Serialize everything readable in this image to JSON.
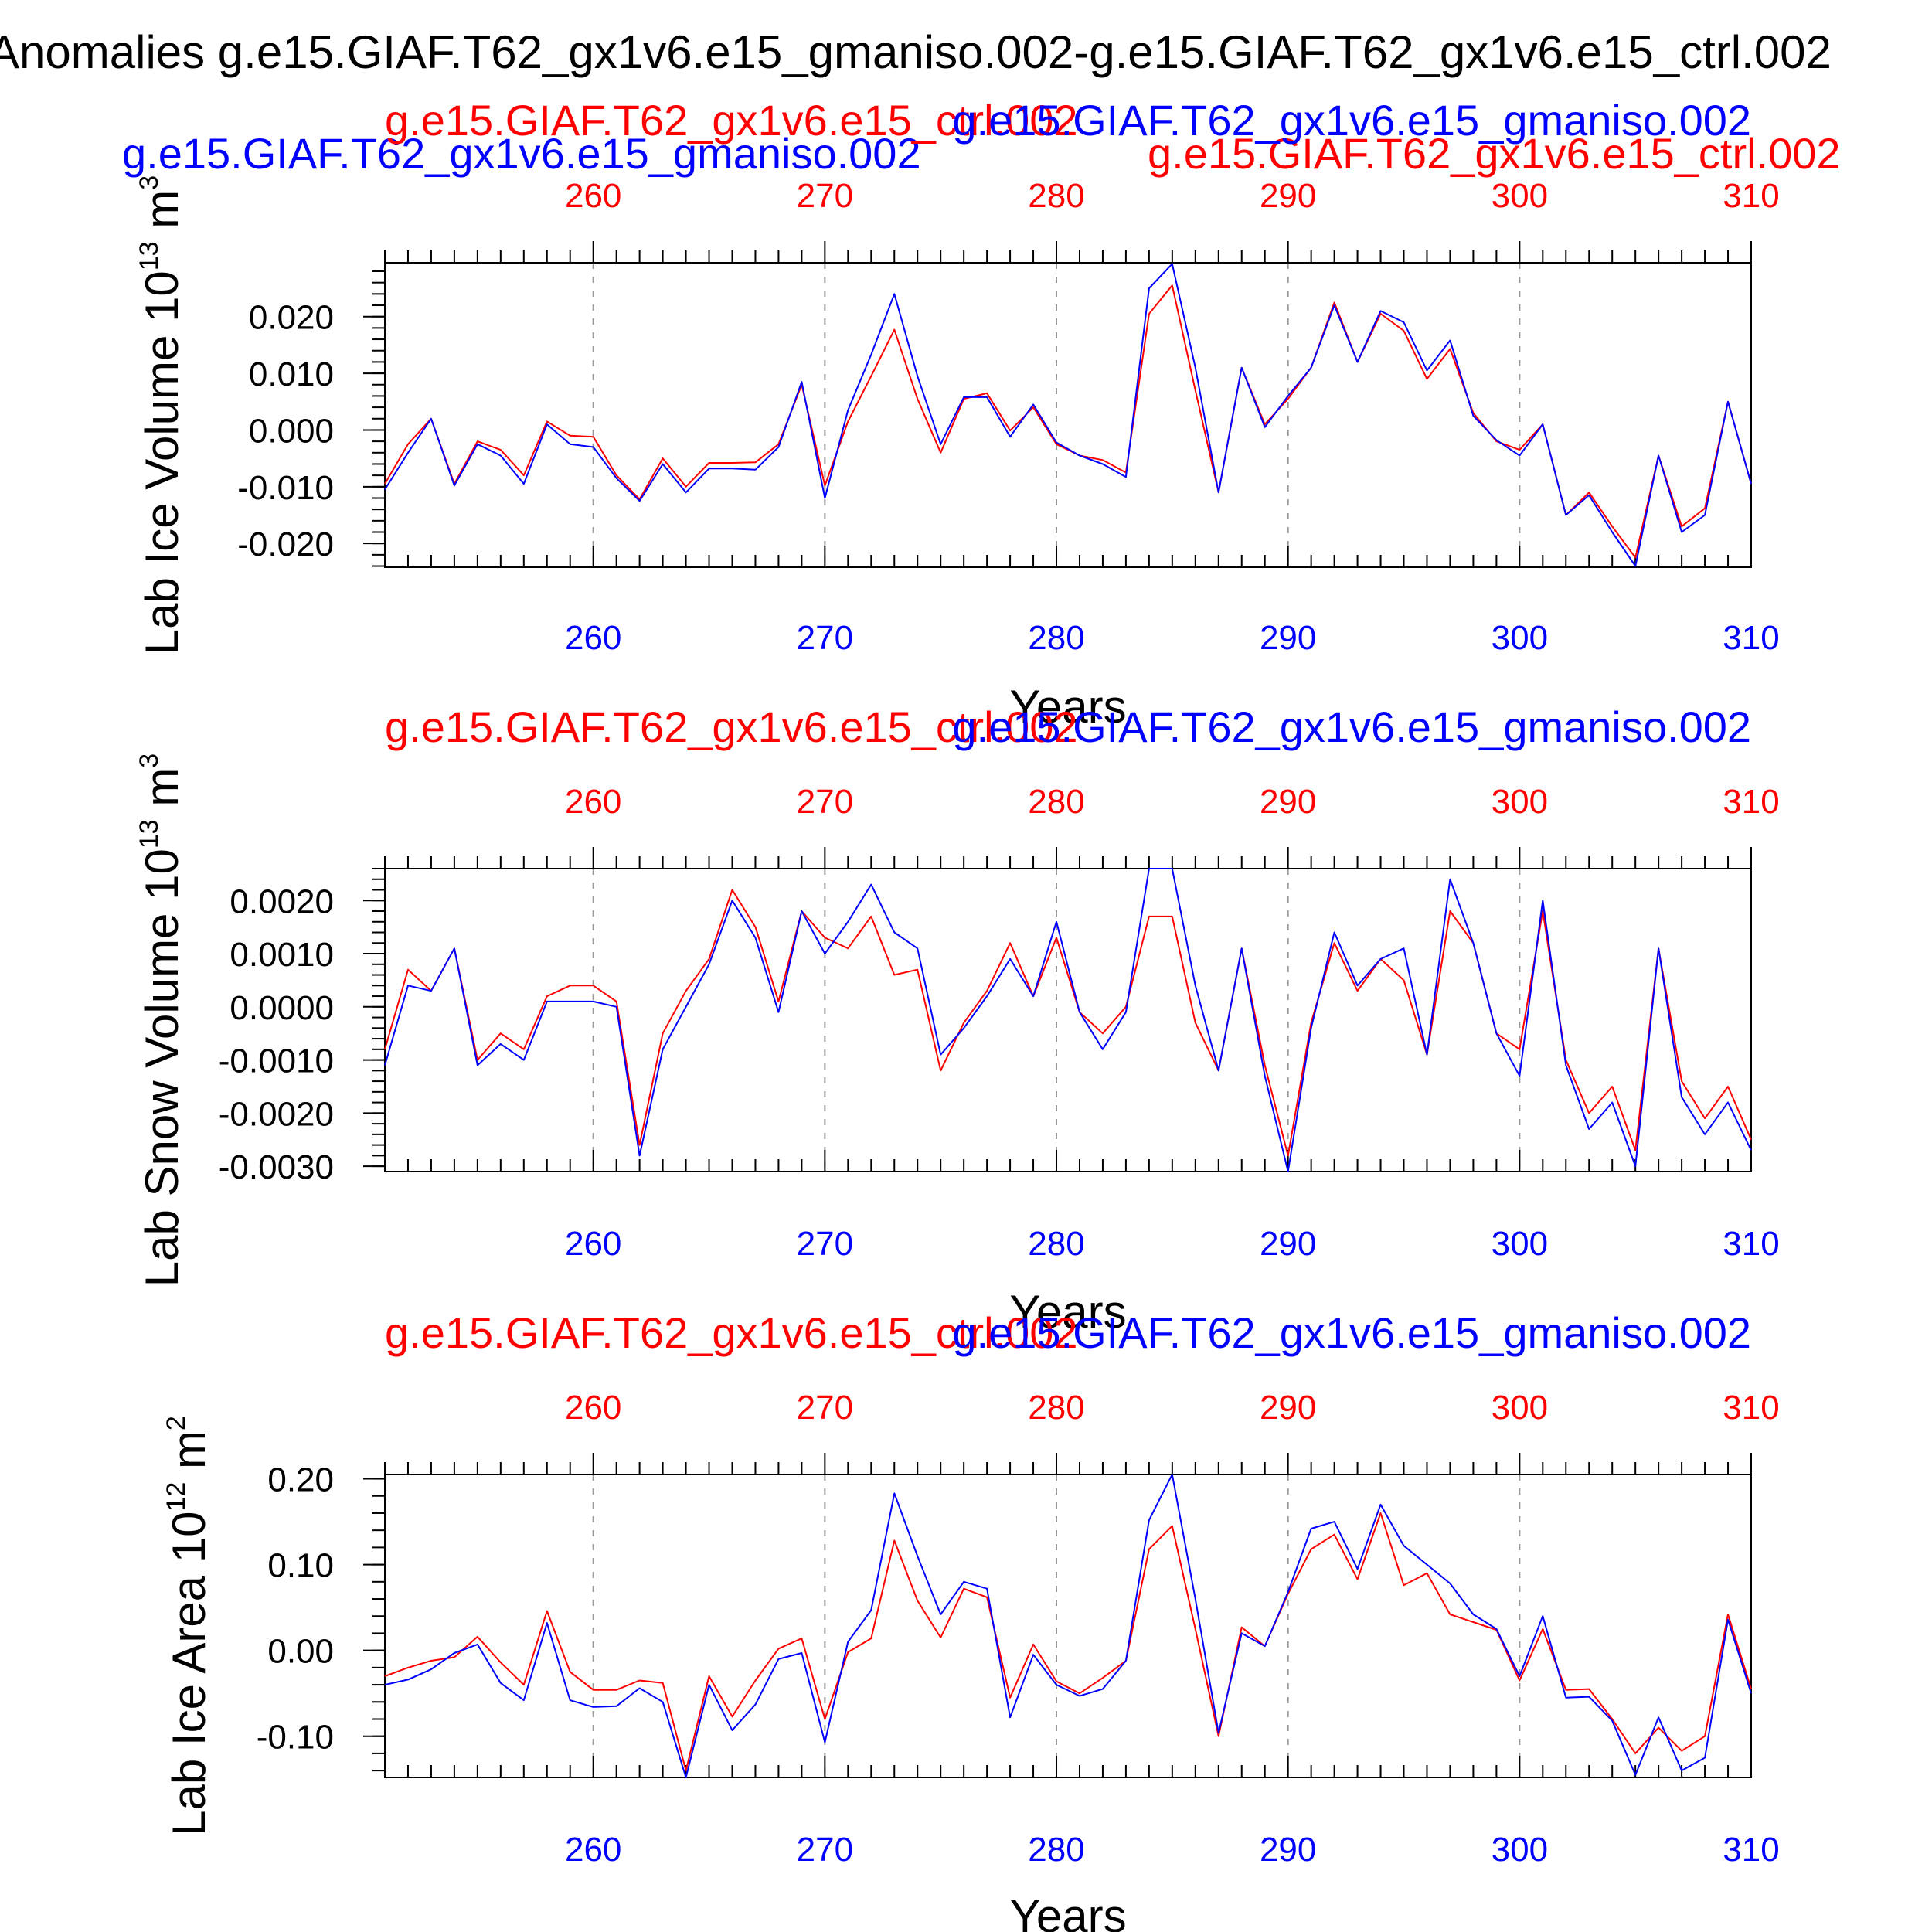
{
  "page_title": "Anomalies g.e15.GIAF.T62_gx1v6.e15_gmaniso.002-g.e15.GIAF.T62_gx1v6.e15_ctrl.002",
  "colors": {
    "case_a": "#ff0000",
    "case_b": "#0000ff",
    "axis": "#000000",
    "grid": "#999999"
  },
  "chart_data": [
    {
      "type": "line",
      "extra_title_label": "g.e15.GIAF.T62_gx1v6.e15_gmaniso.002",
      "extra_title_label_2": "g.e15.GIAF.T62_gx1v6.e15_ctrl.002",
      "title_left": "g.e15.GIAF.T62_gx1v6.e15_ctrl.002",
      "title_right": "g.e15.GIAF.T62_gx1v6.e15_gmaniso.002",
      "ylabel": "Lab Ice Volume 10",
      "ylabel_exp": "13",
      "ylabel_unit": "m",
      "ylabel_unit_exp": "3",
      "xlabel": "Years",
      "xlim": [
        251,
        310
      ],
      "ylim": [
        -0.0242,
        0.0295
      ],
      "x_ticks": [
        260,
        270,
        280,
        290,
        300,
        310
      ],
      "x_tick_labels": [
        "260",
        "270",
        "280",
        "290",
        "300",
        "310"
      ],
      "y_ticks": [
        -0.02,
        -0.01,
        0.0,
        0.01,
        0.02
      ],
      "y_tick_labels": [
        "-0.020",
        "-0.010",
        "0.000",
        "0.010",
        "0.020"
      ],
      "y_minor_step": 0.002,
      "series": [
        {
          "name": "g.e15.GIAF.T62_gx1v6.e15_ctrl.002",
          "color": "#ff0000",
          "values": [
            -0.0095,
            -0.0025,
            0.002,
            -0.0095,
            -0.002,
            -0.0035,
            -0.008,
            0.0015,
            -0.001,
            -0.0012,
            -0.008,
            -0.0122,
            -0.005,
            -0.01,
            -0.0058,
            -0.0058,
            -0.0057,
            -0.0025,
            0.008,
            -0.0098,
            0.0015,
            0.0095,
            0.0177,
            0.0055,
            -0.004,
            0.0055,
            0.0065,
            -0.0001,
            0.004,
            -0.0025,
            -0.0045,
            -0.0053,
            -0.0075,
            0.0205,
            0.0255,
            0.007,
            -0.011,
            0.011,
            0.001,
            0.0055,
            0.011,
            0.0225,
            0.012,
            0.0205,
            0.0175,
            0.009,
            0.0143,
            0.003,
            -0.002,
            -0.0035,
            0.001,
            -0.015,
            -0.011,
            -0.017,
            -0.0225,
            -0.0045,
            -0.017,
            -0.0138,
            0.005,
            -0.0095
          ]
        },
        {
          "name": "g.e15.GIAF.T62_gx1v6.e15_gmaniso.002",
          "color": "#0000ff",
          "values": [
            -0.0105,
            -0.004,
            0.002,
            -0.0098,
            -0.0025,
            -0.0045,
            -0.0095,
            0.001,
            -0.0025,
            -0.003,
            -0.0085,
            -0.0125,
            -0.006,
            -0.011,
            -0.0068,
            -0.0068,
            -0.007,
            -0.003,
            0.0085,
            -0.012,
            0.0035,
            0.0133,
            0.024,
            0.0095,
            -0.0025,
            0.0058,
            0.0058,
            -0.0012,
            0.0045,
            -0.0022,
            -0.0045,
            -0.006,
            -0.0083,
            0.025,
            0.0293,
            0.011,
            -0.011,
            0.011,
            0.0005,
            0.006,
            0.011,
            0.022,
            0.012,
            0.021,
            0.019,
            0.0105,
            0.0158,
            0.0025,
            -0.0018,
            -0.0045,
            0.001,
            -0.015,
            -0.0115,
            -0.018,
            -0.024,
            -0.0045,
            -0.018,
            -0.015,
            0.005,
            -0.0095
          ]
        }
      ]
    },
    {
      "type": "line",
      "title_left": "g.e15.GIAF.T62_gx1v6.e15_ctrl.002",
      "title_right": "g.e15.GIAF.T62_gx1v6.e15_gmaniso.002",
      "ylabel": "Lab Snow Volume 10",
      "ylabel_exp": "13",
      "ylabel_unit": "m",
      "ylabel_unit_exp": "3",
      "xlabel": "Years",
      "xlim": [
        251,
        310
      ],
      "ylim": [
        -0.0031,
        0.0026
      ],
      "x_ticks": [
        260,
        270,
        280,
        290,
        300,
        310
      ],
      "x_tick_labels": [
        "260",
        "270",
        "280",
        "290",
        "300",
        "310"
      ],
      "y_ticks": [
        -0.003,
        -0.002,
        -0.001,
        0.0,
        0.001,
        0.002
      ],
      "y_tick_labels": [
        "-0.0030",
        "-0.0020",
        "-0.0010",
        "0.0000",
        "0.0010",
        "0.0020"
      ],
      "y_minor_step": 0.0002,
      "series": [
        {
          "name": "g.e15.GIAF.T62_gx1v6.e15_ctrl.002",
          "color": "#ff0000",
          "values": [
            -0.0008,
            0.0007,
            0.0003,
            0.0011,
            -0.001,
            -0.0005,
            -0.0008,
            0.0002,
            0.0004,
            0.0004,
            0.0001,
            -0.0026,
            -0.0005,
            0.0003,
            0.0009,
            0.0022,
            0.0015,
            0.0001,
            0.0018,
            0.0013,
            0.0011,
            0.0017,
            0.0006,
            0.0007,
            -0.0012,
            -0.0003,
            0.0003,
            0.0012,
            0.0002,
            0.0013,
            -0.0001,
            -0.0005,
            0.0,
            0.0017,
            0.0017,
            -0.0003,
            -0.0012,
            0.0011,
            -0.0011,
            -0.0028,
            -0.0003,
            0.0012,
            0.0003,
            0.0009,
            0.0005,
            -0.0009,
            0.0018,
            0.0012,
            -0.0005,
            -0.0008,
            0.0018,
            -0.001,
            -0.002,
            -0.0015,
            -0.0027,
            0.0011,
            -0.0014,
            -0.0021,
            -0.0015,
            -0.0025
          ]
        },
        {
          "name": "g.e15.GIAF.T62_gx1v6.e15_gmaniso.002",
          "color": "#0000ff",
          "values": [
            -0.0011,
            0.0004,
            0.0003,
            0.0011,
            -0.0011,
            -0.0007,
            -0.001,
            0.0001,
            0.0001,
            0.0001,
            0.0,
            -0.0028,
            -0.0008,
            0.0,
            0.0008,
            0.002,
            0.0013,
            -0.0001,
            0.0018,
            0.001,
            0.0016,
            0.0023,
            0.0014,
            0.0011,
            -0.0009,
            -0.0004,
            0.0002,
            0.0009,
            0.0002,
            0.0016,
            -0.0001,
            -0.0008,
            -0.0001,
            0.0026,
            0.0026,
            0.0004,
            -0.0012,
            0.0011,
            -0.0013,
            -0.0031,
            -0.0004,
            0.0014,
            0.0004,
            0.0009,
            0.0011,
            -0.0009,
            0.0024,
            0.0012,
            -0.0005,
            -0.0013,
            0.002,
            -0.0011,
            -0.0023,
            -0.0018,
            -0.003,
            0.0011,
            -0.0017,
            -0.0024,
            -0.0018,
            -0.0027
          ]
        }
      ]
    },
    {
      "type": "line",
      "title_left": "g.e15.GIAF.T62_gx1v6.e15_ctrl.002",
      "title_right": "g.e15.GIAF.T62_gx1v6.e15_gmaniso.002",
      "ylabel": "Lab Ice Area 10",
      "ylabel_exp": "12",
      "ylabel_unit": "m",
      "ylabel_unit_exp": "2",
      "xlabel": "Years",
      "xlim": [
        251,
        310
      ],
      "ylim": [
        -0.148,
        0.205
      ],
      "x_ticks": [
        260,
        270,
        280,
        290,
        300,
        310
      ],
      "x_tick_labels": [
        "260",
        "270",
        "280",
        "290",
        "300",
        "310"
      ],
      "y_ticks": [
        -0.1,
        0.0,
        0.1,
        0.2
      ],
      "y_tick_labels": [
        "-0.10",
        "0.00",
        "0.10",
        "0.20"
      ],
      "y_minor_step": 0.02,
      "series": [
        {
          "name": "g.e15.GIAF.T62_gx1v6.e15_ctrl.002",
          "color": "#ff0000",
          "values": [
            -0.03,
            -0.02,
            -0.012,
            -0.008,
            0.016,
            -0.014,
            -0.04,
            0.046,
            -0.025,
            -0.046,
            -0.046,
            -0.035,
            -0.038,
            -0.14,
            -0.03,
            -0.077,
            -0.035,
            0.002,
            0.014,
            -0.08,
            -0.002,
            0.014,
            0.128,
            0.058,
            0.015,
            0.072,
            0.062,
            -0.055,
            0.007,
            -0.036,
            -0.05,
            -0.032,
            -0.012,
            0.118,
            0.145,
            0.025,
            -0.1,
            0.027,
            0.005,
            0.066,
            0.118,
            0.135,
            0.083,
            0.16,
            0.076,
            0.09,
            0.042,
            0.033,
            0.024,
            -0.035,
            0.025,
            -0.046,
            -0.045,
            -0.08,
            -0.12,
            -0.09,
            -0.117,
            -0.1,
            0.042,
            -0.045
          ]
        },
        {
          "name": "g.e15.GIAF.T62_gx1v6.e15_gmaniso.002",
          "color": "#0000ff",
          "values": [
            -0.04,
            -0.034,
            -0.022,
            -0.003,
            0.007,
            -0.038,
            -0.058,
            0.032,
            -0.058,
            -0.066,
            -0.065,
            -0.044,
            -0.06,
            -0.148,
            -0.04,
            -0.093,
            -0.063,
            -0.01,
            -0.003,
            -0.107,
            0.01,
            0.047,
            0.183,
            0.11,
            0.042,
            0.08,
            0.072,
            -0.078,
            -0.005,
            -0.04,
            -0.053,
            -0.045,
            -0.012,
            0.152,
            0.205,
            0.06,
            -0.096,
            0.02,
            0.005,
            0.068,
            0.142,
            0.15,
            0.095,
            0.17,
            0.122,
            0.1,
            0.078,
            0.042,
            0.025,
            -0.03,
            0.04,
            -0.055,
            -0.054,
            -0.082,
            -0.145,
            -0.078,
            -0.14,
            -0.125,
            0.036,
            -0.05
          ]
        }
      ]
    }
  ]
}
